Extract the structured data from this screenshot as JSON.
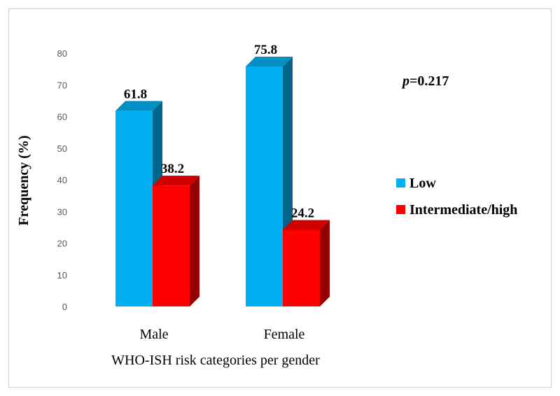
{
  "chart_data": {
    "type": "bar",
    "style": "3d-clustered-column",
    "categories": [
      "Male",
      "Female"
    ],
    "series": [
      {
        "name": "Low",
        "values": [
          61.8,
          75.8
        ],
        "color": "#00b0f0"
      },
      {
        "name": "Intermediate/high",
        "values": [
          38.2,
          24.2
        ],
        "color": "#ff0000"
      }
    ],
    "xlabel": "WHO-ISH risk categories per gender",
    "ylabel": "Frequency (%)",
    "ylim": [
      0,
      80
    ],
    "yticks": [
      0,
      10,
      20,
      30,
      40,
      50,
      60,
      70,
      80
    ],
    "grid": false,
    "legend_position": "right",
    "annotation": {
      "italic": "p",
      "text": "=0.217"
    }
  }
}
